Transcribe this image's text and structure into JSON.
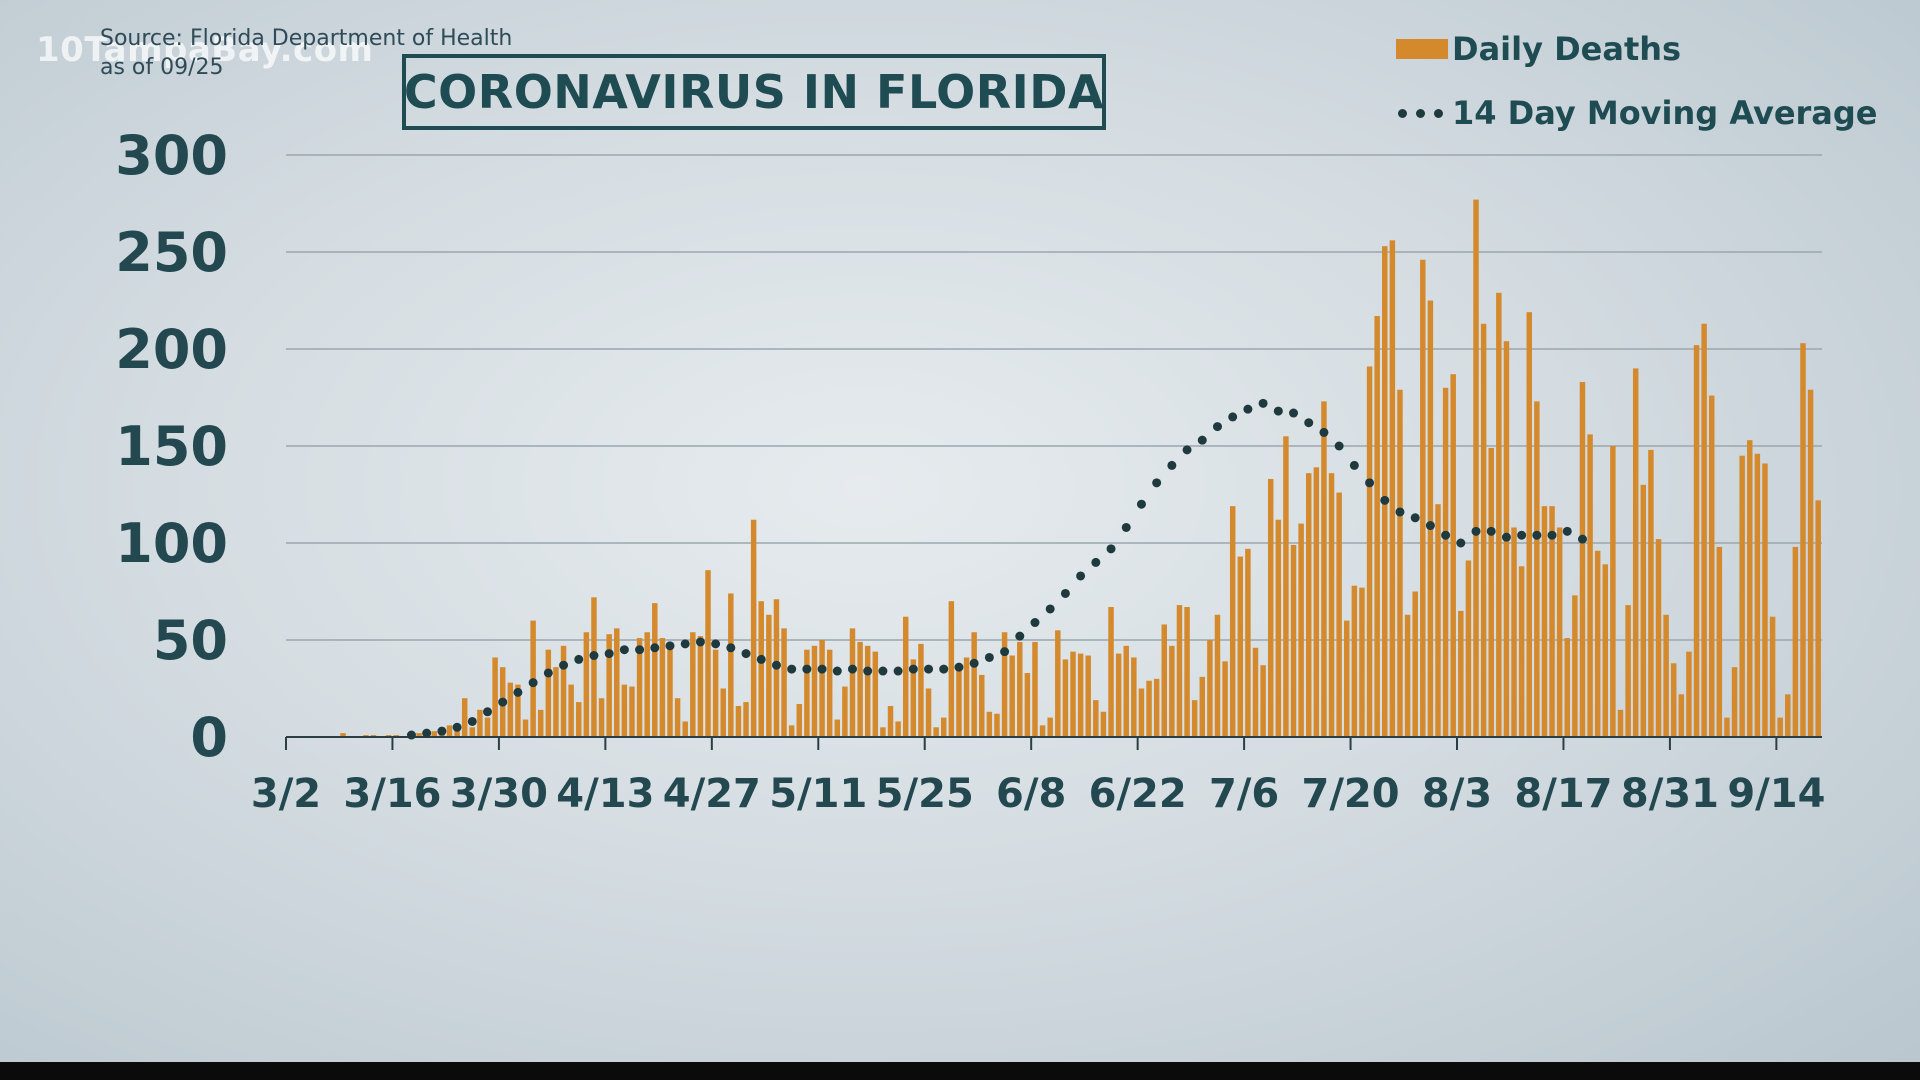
{
  "watermark": "10TampaBay.com",
  "source_line1": "Source: Florida Department of Health",
  "source_line2": "as of 09/25",
  "colors": {
    "bar": "#d48a2c",
    "dots": "#1f3a3f",
    "title": "#1f4b52",
    "grid": "#9aa7ad",
    "axis": "#2c3e44"
  },
  "chart_data": {
    "type": "bar",
    "title": "CORONAVIRUS IN FLORIDA",
    "legend_position": "top-right",
    "grid": true,
    "ylim": [
      0,
      300
    ],
    "yticks": [
      0,
      50,
      100,
      150,
      200,
      250,
      300
    ],
    "xlabels": [
      "3/2",
      "3/16",
      "3/30",
      "4/13",
      "4/27",
      "5/11",
      "5/25",
      "6/8",
      "6/22",
      "7/6",
      "7/20",
      "8/3",
      "8/17",
      "8/31",
      "9/14"
    ],
    "x_start": "3/2",
    "series": [
      {
        "name": "Daily Deaths",
        "type": "bar",
        "values": [
          0,
          0,
          0,
          0,
          0,
          0,
          0,
          2,
          0,
          0,
          1,
          1,
          0,
          1,
          1,
          0,
          2,
          2,
          1,
          3,
          5,
          6,
          4,
          20,
          5,
          14,
          10,
          41,
          36,
          28,
          27,
          9,
          60,
          14,
          45,
          36,
          47,
          27,
          18,
          54,
          72,
          20,
          53,
          56,
          27,
          26,
          51,
          54,
          69,
          51,
          46,
          20,
          8,
          54,
          52,
          86,
          45,
          25,
          74,
          16,
          18,
          112,
          70,
          63,
          71,
          56,
          6,
          17,
          45,
          47,
          50,
          45,
          9,
          26,
          56,
          49,
          47,
          44,
          5,
          16,
          8,
          62,
          40,
          48,
          25,
          5,
          10,
          70,
          37,
          41,
          54,
          32,
          13,
          12,
          54,
          42,
          49,
          33,
          49,
          6,
          10,
          55,
          40,
          44,
          43,
          42,
          19,
          13,
          67,
          43,
          47,
          41,
          25,
          29,
          30,
          58,
          47,
          68,
          67,
          19,
          31,
          50,
          63,
          39,
          119,
          93,
          97,
          46,
          37,
          133,
          112,
          155,
          99,
          110,
          136,
          139,
          173,
          136,
          126,
          60,
          78,
          77,
          191,
          217,
          253,
          256,
          179,
          63,
          75,
          246,
          225,
          120,
          180,
          187,
          65,
          91,
          277,
          213,
          149,
          229,
          204,
          108,
          88,
          219,
          173,
          119,
          119,
          108,
          51,
          73,
          183,
          156,
          96,
          89,
          150,
          14,
          68,
          190,
          130,
          148,
          102,
          63,
          38,
          22,
          44,
          202,
          213,
          176,
          98,
          10,
          36,
          145,
          153,
          146,
          141,
          62,
          10,
          22,
          98,
          203,
          179,
          122
        ]
      },
      {
        "name": "14 Day Moving Average",
        "type": "dotted-line",
        "values": [
          null,
          null,
          null,
          null,
          null,
          null,
          null,
          null,
          null,
          null,
          null,
          null,
          null,
          null,
          null,
          null,
          null,
          null,
          null,
          null,
          null,
          null,
          null,
          null,
          null,
          null,
          null,
          null,
          null,
          null,
          null,
          null,
          null,
          null,
          null,
          null,
          null,
          null,
          null,
          null,
          null,
          null,
          null,
          null,
          null,
          null,
          null,
          null,
          null,
          null,
          null,
          null,
          null,
          null,
          null,
          null,
          null,
          null,
          null,
          null,
          null,
          null,
          null,
          null,
          null,
          null,
          null,
          null,
          null,
          null,
          null,
          null,
          null,
          null,
          null,
          null,
          null,
          null,
          null,
          null,
          null,
          null,
          null,
          null,
          null,
          null,
          null,
          null,
          null,
          null,
          null,
          null,
          null,
          null,
          null,
          null,
          null,
          null,
          null,
          null,
          null,
          null,
          null,
          null,
          null,
          null,
          null,
          null,
          null,
          null,
          null,
          null,
          null,
          null,
          null,
          null,
          null,
          null,
          null,
          null,
          null,
          null,
          null,
          null,
          null,
          null,
          null,
          null,
          null,
          null,
          null,
          null,
          null,
          null,
          null,
          null,
          null,
          null,
          null,
          null,
          null,
          null,
          null,
          null,
          null,
          null,
          null,
          null,
          null,
          null,
          null,
          null,
          null,
          null,
          null,
          null,
          null,
          null,
          null,
          null,
          null,
          null,
          null,
          null,
          null,
          null,
          null,
          null,
          null,
          null,
          null,
          null,
          null,
          null,
          null,
          null,
          null,
          null,
          null,
          null,
          null,
          null,
          null,
          null,
          null,
          null,
          null,
          null,
          null,
          null,
          null,
          null,
          null,
          null,
          null,
          null,
          null,
          null,
          null,
          null,
          null,
          null,
          null,
          null,
          null
        ]
      }
    ],
    "moving_average_points": [
      {
        "day": 16,
        "y": 1
      },
      {
        "day": 18,
        "y": 2
      },
      {
        "day": 20,
        "y": 3
      },
      {
        "day": 22,
        "y": 5
      },
      {
        "day": 24,
        "y": 8
      },
      {
        "day": 26,
        "y": 13
      },
      {
        "day": 28,
        "y": 18
      },
      {
        "day": 30,
        "y": 23
      },
      {
        "day": 32,
        "y": 28
      },
      {
        "day": 34,
        "y": 33
      },
      {
        "day": 36,
        "y": 37
      },
      {
        "day": 38,
        "y": 40
      },
      {
        "day": 40,
        "y": 42
      },
      {
        "day": 42,
        "y": 43
      },
      {
        "day": 44,
        "y": 45
      },
      {
        "day": 46,
        "y": 45
      },
      {
        "day": 48,
        "y": 46
      },
      {
        "day": 50,
        "y": 47
      },
      {
        "day": 52,
        "y": 48
      },
      {
        "day": 54,
        "y": 49
      },
      {
        "day": 56,
        "y": 48
      },
      {
        "day": 58,
        "y": 46
      },
      {
        "day": 60,
        "y": 43
      },
      {
        "day": 62,
        "y": 40
      },
      {
        "day": 64,
        "y": 37
      },
      {
        "day": 66,
        "y": 35
      },
      {
        "day": 68,
        "y": 35
      },
      {
        "day": 70,
        "y": 35
      },
      {
        "day": 72,
        "y": 34
      },
      {
        "day": 74,
        "y": 35
      },
      {
        "day": 76,
        "y": 34
      },
      {
        "day": 78,
        "y": 34
      },
      {
        "day": 80,
        "y": 34
      },
      {
        "day": 82,
        "y": 35
      },
      {
        "day": 84,
        "y": 35
      },
      {
        "day": 86,
        "y": 35
      },
      {
        "day": 88,
        "y": 36
      },
      {
        "day": 90,
        "y": 38
      },
      {
        "day": 92,
        "y": 41
      },
      {
        "day": 94,
        "y": 44
      },
      {
        "day": 96,
        "y": 52
      },
      {
        "day": 98,
        "y": 59
      },
      {
        "day": 100,
        "y": 66
      },
      {
        "day": 102,
        "y": 74
      },
      {
        "day": 104,
        "y": 83
      },
      {
        "day": 106,
        "y": 90
      },
      {
        "day": 108,
        "y": 97
      },
      {
        "day": 110,
        "y": 108
      },
      {
        "day": 112,
        "y": 120
      },
      {
        "day": 114,
        "y": 131
      },
      {
        "day": 116,
        "y": 140
      },
      {
        "day": 118,
        "y": 148
      },
      {
        "day": 120,
        "y": 153
      },
      {
        "day": 122,
        "y": 160
      },
      {
        "day": 124,
        "y": 165
      },
      {
        "day": 126,
        "y": 169
      },
      {
        "day": 128,
        "y": 172
      },
      {
        "day": 130,
        "y": 168
      },
      {
        "day": 132,
        "y": 167
      },
      {
        "day": 134,
        "y": 162
      },
      {
        "day": 136,
        "y": 157
      },
      {
        "day": 138,
        "y": 150
      },
      {
        "day": 140,
        "y": 140
      },
      {
        "day": 142,
        "y": 131
      },
      {
        "day": 144,
        "y": 122
      },
      {
        "day": 146,
        "y": 116
      },
      {
        "day": 148,
        "y": 113
      },
      {
        "day": 150,
        "y": 109
      },
      {
        "day": 152,
        "y": 104
      },
      {
        "day": 154,
        "y": 100
      },
      {
        "day": 156,
        "y": 106
      },
      {
        "day": 158,
        "y": 106
      },
      {
        "day": 160,
        "y": 103
      },
      {
        "day": 162,
        "y": 104
      },
      {
        "day": 164,
        "y": 104
      },
      {
        "day": 166,
        "y": 104
      },
      {
        "day": 168,
        "y": 106
      },
      {
        "day": 170,
        "y": 102
      }
    ]
  }
}
